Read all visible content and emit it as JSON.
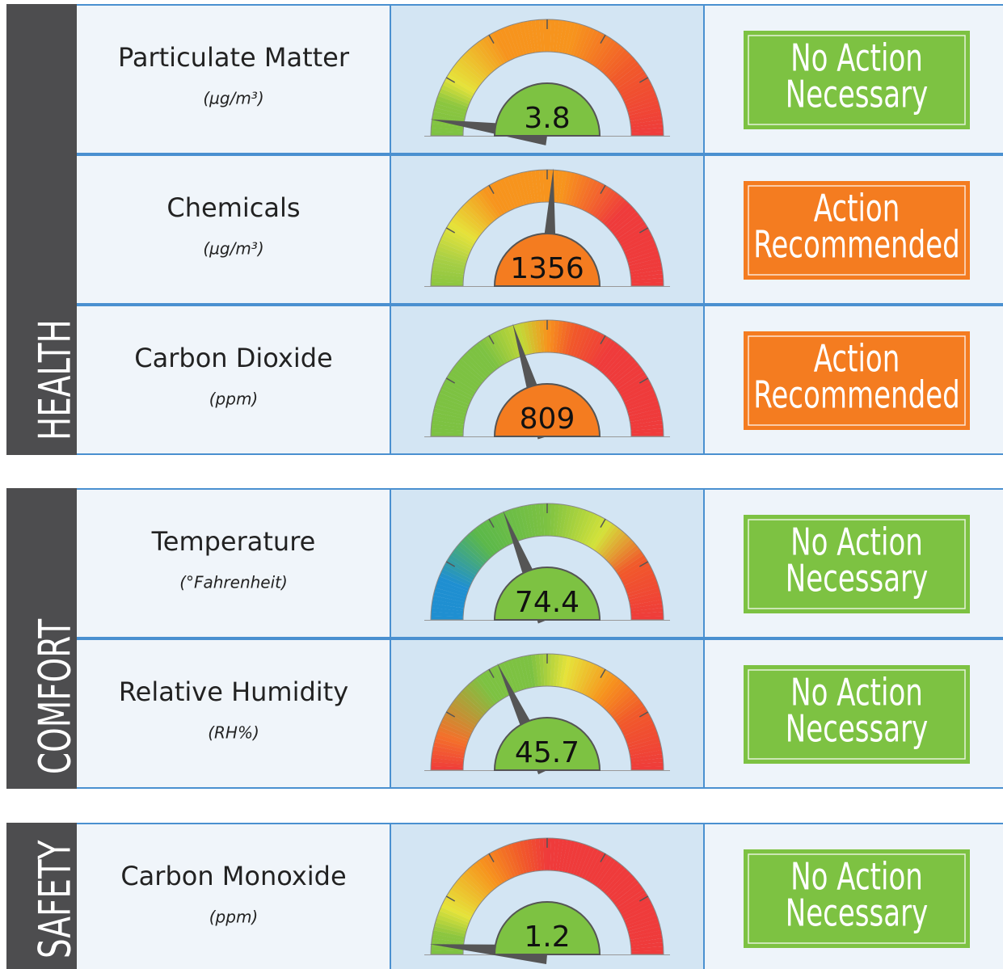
{
  "sections": [
    {
      "label": "HEALTH",
      "rows": [
        {
          "name": "Particulate Matter",
          "unit": "(µg/m³)",
          "value": "3.8",
          "status": [
            "No Action",
            "Necessary"
          ],
          "color": "#7dc242"
        },
        {
          "name": "Chemicals",
          "unit": "(µg/m³)",
          "value": "1356",
          "status": [
            "Action",
            "Recommended"
          ],
          "color": "#f47c20"
        },
        {
          "name": "Carbon Dioxide",
          "unit": "(ppm)",
          "value": "809",
          "status": [
            "Action",
            "Recommended"
          ],
          "color": "#f47c20"
        }
      ]
    },
    {
      "label": "COMFORT",
      "rows": [
        {
          "name": "Temperature",
          "unit": "(°Fahrenheit)",
          "value": "74.4",
          "status": [
            "No Action",
            "Necessary"
          ],
          "color": "#7dc242"
        },
        {
          "name": "Relative Humidity",
          "unit": "(RH%)",
          "value": "45.7",
          "status": [
            "No Action",
            "Necessary"
          ],
          "color": "#7dc242"
        }
      ]
    },
    {
      "label": "SAFETY",
      "rows": [
        {
          "name": "Carbon Monoxide",
          "unit": "(ppm)",
          "value": "1.2",
          "status": [
            "No Action",
            "Necessary"
          ],
          "color": "#7dc242"
        }
      ]
    }
  ]
}
